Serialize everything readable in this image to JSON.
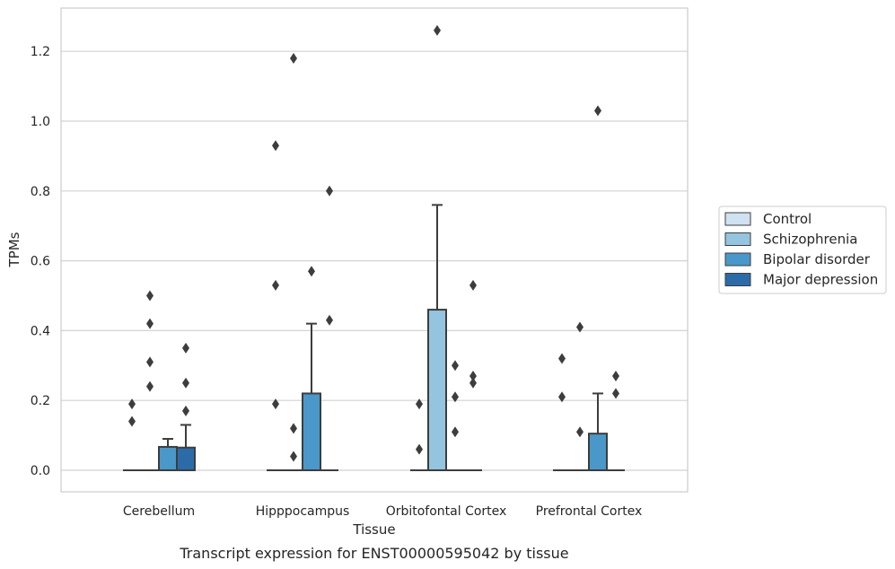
{
  "caption": "Transcript expression for ENST00000595042 by tissue",
  "chart_data": {
    "type": "box",
    "xlabel": "Tissue",
    "ylabel": "TPMs",
    "categories": [
      "Cerebellum",
      "Hipppocampus",
      "Orbitofontal Cortex",
      "Prefrontal Cortex"
    ],
    "ylim": [
      -0.06,
      1.32
    ],
    "yticks": [
      0.0,
      0.2,
      0.4,
      0.6,
      0.8,
      1.0,
      1.2
    ],
    "ytick_labels": [
      "0.0",
      "0.2",
      "0.4",
      "0.6",
      "0.8",
      "1.0",
      "1.2"
    ],
    "grid": "horizontal",
    "legend_position": "right",
    "series": [
      {
        "name": "Control",
        "color": "#d0e1f2",
        "boxes": [
          {
            "category": "Cerebellum",
            "q1": 0,
            "median": 0,
            "q3": 0,
            "whisker_low": 0,
            "whisker_high": 0,
            "outliers": [
              0.19,
              0.14
            ]
          },
          {
            "category": "Hipppocampus",
            "q1": 0,
            "median": 0,
            "q3": 0,
            "whisker_low": 0,
            "whisker_high": 0,
            "outliers": [
              0.93,
              0.53,
              0.19
            ]
          },
          {
            "category": "Orbitofontal Cortex",
            "q1": 0,
            "median": 0,
            "q3": 0,
            "whisker_low": 0,
            "whisker_high": 0,
            "outliers": [
              0.19,
              0.06
            ]
          },
          {
            "category": "Prefrontal Cortex",
            "q1": 0,
            "median": 0,
            "q3": 0,
            "whisker_low": 0,
            "whisker_high": 0,
            "outliers": [
              0.32,
              0.21
            ]
          }
        ]
      },
      {
        "name": "Schizophrenia",
        "color": "#94c4df",
        "boxes": [
          {
            "category": "Cerebellum",
            "q1": 0,
            "median": 0,
            "q3": 0,
            "whisker_low": 0,
            "whisker_high": 0,
            "outliers": [
              0.5,
              0.42,
              0.31,
              0.24
            ]
          },
          {
            "category": "Hipppocampus",
            "q1": 0,
            "median": 0,
            "q3": 0,
            "whisker_low": 0,
            "whisker_high": 0,
            "outliers": [
              1.18,
              0.12,
              0.04
            ]
          },
          {
            "category": "Orbitofontal Cortex",
            "q1": 0,
            "median": 0,
            "q3": 0.46,
            "whisker_low": 0,
            "whisker_high": 0.76,
            "outliers": [
              1.26
            ]
          },
          {
            "category": "Prefrontal Cortex",
            "q1": 0,
            "median": 0,
            "q3": 0,
            "whisker_low": 0,
            "whisker_high": 0,
            "outliers": [
              0.41,
              0.11
            ]
          }
        ]
      },
      {
        "name": "Bipolar disorder",
        "color": "#4a98c9",
        "boxes": [
          {
            "category": "Cerebellum",
            "q1": 0,
            "median": 0,
            "q3": 0.067,
            "whisker_low": 0,
            "whisker_high": 0.09,
            "outliers": []
          },
          {
            "category": "Hipppocampus",
            "q1": 0,
            "median": 0,
            "q3": 0.22,
            "whisker_low": 0,
            "whisker_high": 0.42,
            "outliers": [
              0.57
            ]
          },
          {
            "category": "Orbitofontal Cortex",
            "q1": 0,
            "median": 0,
            "q3": 0,
            "whisker_low": 0,
            "whisker_high": 0,
            "outliers": [
              0.3,
              0.21,
              0.11
            ]
          },
          {
            "category": "Prefrontal Cortex",
            "q1": 0,
            "median": 0,
            "q3": 0.105,
            "whisker_low": 0,
            "whisker_high": 0.22,
            "outliers": [
              1.03
            ]
          }
        ]
      },
      {
        "name": "Major depression",
        "color": "#2b6ca8",
        "boxes": [
          {
            "category": "Cerebellum",
            "q1": 0,
            "median": 0,
            "q3": 0.065,
            "whisker_low": 0,
            "whisker_high": 0.13,
            "outliers": [
              0.35,
              0.25,
              0.17
            ]
          },
          {
            "category": "Hipppocampus",
            "q1": 0,
            "median": 0,
            "q3": 0,
            "whisker_low": 0,
            "whisker_high": 0,
            "outliers": [
              0.8,
              0.43
            ]
          },
          {
            "category": "Orbitofontal Cortex",
            "q1": 0,
            "median": 0,
            "q3": 0,
            "whisker_low": 0,
            "whisker_high": 0,
            "outliers": [
              0.53,
              0.27,
              0.25
            ]
          },
          {
            "category": "Prefrontal Cortex",
            "q1": 0,
            "median": 0,
            "q3": 0,
            "whisker_low": 0,
            "whisker_high": 0,
            "outliers": [
              0.27,
              0.22
            ]
          }
        ]
      }
    ]
  }
}
